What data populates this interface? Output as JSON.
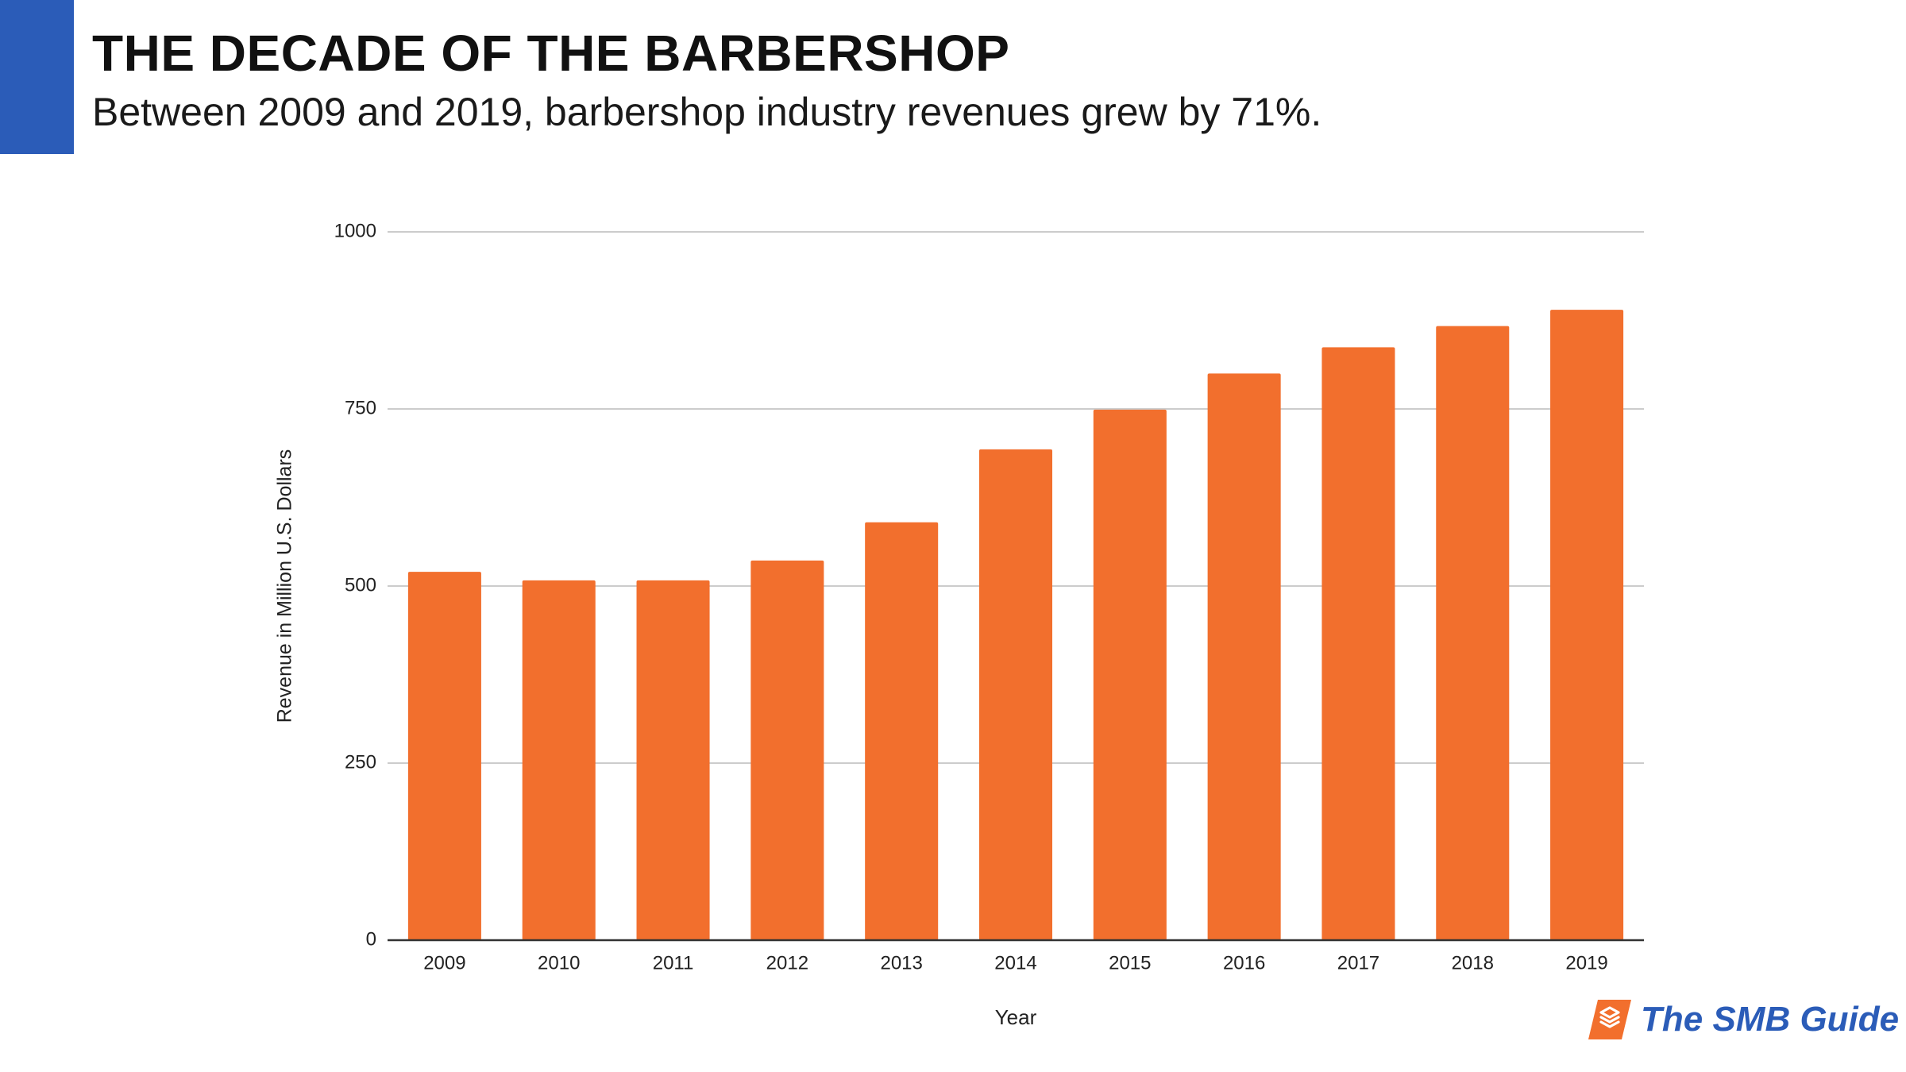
{
  "header": {
    "title": "THE DECADE OF THE BARBERSHOP",
    "subtitle": "Between 2009 and 2019, barbershop industry revenues grew by 71%."
  },
  "colors": {
    "accent_blue": "#2b5cb8",
    "bar_orange": "#f26f2d",
    "gridline": "#cccccc",
    "axis": "#333333"
  },
  "chart_data": {
    "type": "bar",
    "title": "",
    "xlabel": "Year",
    "ylabel": "Revenue in Million U.S. Dollars",
    "categories": [
      "2009",
      "2010",
      "2011",
      "2012",
      "2013",
      "2014",
      "2015",
      "2016",
      "2017",
      "2018",
      "2019"
    ],
    "values": [
      520,
      508,
      508,
      536,
      590,
      693,
      749,
      800,
      837,
      867,
      890
    ],
    "ylim": [
      0,
      1000
    ],
    "yticks": [
      0,
      250,
      500,
      750,
      1000
    ],
    "grid": true,
    "legend": "none"
  },
  "logo": {
    "text": "The SMB Guide",
    "icon": "stacked-layers-icon"
  }
}
